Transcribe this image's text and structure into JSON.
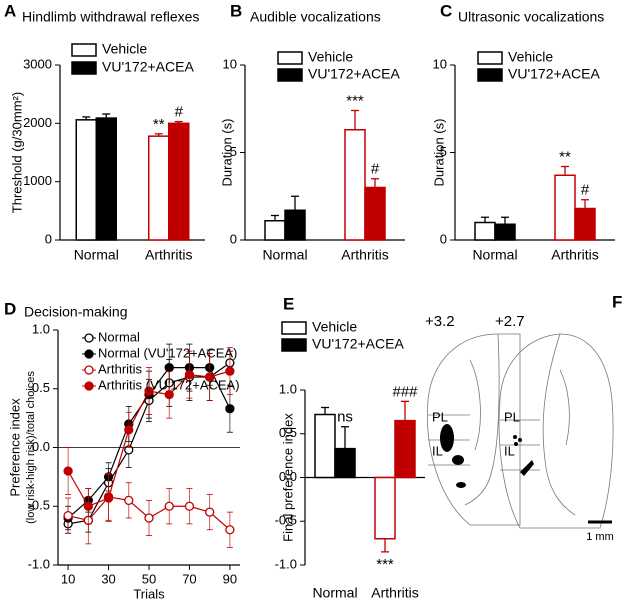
{
  "chart_data": [
    {
      "type": "bar",
      "panel": "A",
      "title": "Hindlimb withdrawal reflexes",
      "ylabel": [
        "Threshold (g/30mm²)"
      ],
      "categories": [
        "Normal",
        "Arthritis"
      ],
      "category_colors": [
        "#000000",
        "#c00000"
      ],
      "ylim": [
        0,
        3000
      ],
      "yticks": [
        0,
        1000,
        2000,
        3000
      ],
      "series": [
        {
          "name": "Vehicle",
          "filled": false,
          "values": [
            2060,
            1780
          ],
          "errors": [
            50,
            40
          ],
          "annotations": [
            null,
            "**"
          ]
        },
        {
          "name": "VU'172+ACEA",
          "filled": true,
          "values": [
            2090,
            2000
          ],
          "errors": [
            70,
            30
          ],
          "annotations": [
            null,
            "#"
          ]
        }
      ]
    },
    {
      "type": "bar",
      "panel": "B",
      "title": "Audible vocalizations",
      "ylabel": [
        "Duration (s)"
      ],
      "categories": [
        "Normal",
        "Arthritis"
      ],
      "category_colors": [
        "#000000",
        "#c00000"
      ],
      "ylim": [
        0,
        10
      ],
      "yticks": [
        0,
        5,
        10
      ],
      "series": [
        {
          "name": "Vehicle",
          "filled": false,
          "values": [
            1.1,
            6.3
          ],
          "errors": [
            0.3,
            1.1
          ],
          "annotations": [
            null,
            "***"
          ]
        },
        {
          "name": "VU'172+ACEA",
          "filled": true,
          "values": [
            1.7,
            3.0
          ],
          "errors": [
            0.8,
            0.5
          ],
          "annotations": [
            null,
            "#"
          ]
        }
      ]
    },
    {
      "type": "bar",
      "panel": "C",
      "title": "Ultrasonic  vocalizations",
      "ylabel": [
        "Duration (s)"
      ],
      "categories": [
        "Normal",
        "Arthritis"
      ],
      "category_colors": [
        "#000000",
        "#c00000"
      ],
      "ylim": [
        0,
        10
      ],
      "yticks": [
        0,
        5,
        10
      ],
      "series": [
        {
          "name": "Vehicle",
          "filled": false,
          "values": [
            1.0,
            3.7
          ],
          "errors": [
            0.3,
            0.5
          ],
          "annotations": [
            null,
            "**"
          ]
        },
        {
          "name": "VU'172+ACEA",
          "filled": true,
          "values": [
            0.9,
            1.8
          ],
          "errors": [
            0.4,
            0.5
          ],
          "annotations": [
            null,
            "#"
          ]
        }
      ]
    },
    {
      "type": "line",
      "panel": "D",
      "title": "Decision-making",
      "ylabel": [
        "Preference index",
        "(low risk-high risk)/total choices"
      ],
      "xlabel": "Trials",
      "x": [
        10,
        20,
        30,
        40,
        50,
        60,
        70,
        80,
        90
      ],
      "xlim": [
        5,
        95
      ],
      "xticks": [
        10,
        30,
        50,
        70,
        90
      ],
      "ylim": [
        -1,
        1
      ],
      "yticks": [
        {
          "value": -1,
          "label": "-1.0"
        },
        {
          "value": -0.5,
          "label": "-0.5"
        },
        {
          "value": 0,
          "label": "0.0"
        },
        {
          "value": 0.5,
          "label": "0.5"
        },
        {
          "value": 1,
          "label": "1.0"
        }
      ],
      "series": [
        {
          "name": "Normal",
          "color": "#000000",
          "filled": false,
          "values": [
            -0.65,
            -0.62,
            -0.3,
            -0.02,
            0.4,
            0.55,
            0.6,
            0.6,
            0.72
          ],
          "errors": [
            0.08,
            0.1,
            0.12,
            0.15,
            0.18,
            0.2,
            0.2,
            0.2,
            0.1
          ]
        },
        {
          "name": "Normal (VU'172+ACEA)",
          "color": "#000000",
          "filled": true,
          "values": [
            -0.6,
            -0.45,
            -0.25,
            0.2,
            0.45,
            0.68,
            0.68,
            0.68,
            0.33
          ],
          "errors": [
            0.1,
            0.1,
            0.12,
            0.15,
            0.2,
            0.2,
            0.2,
            0.15,
            0.2
          ]
        },
        {
          "name": "Arthritis",
          "color": "#c00000",
          "filled": false,
          "values": [
            -0.58,
            -0.62,
            -0.42,
            -0.45,
            -0.6,
            -0.5,
            -0.5,
            -0.55,
            -0.7
          ],
          "errors": [
            0.15,
            0.2,
            0.2,
            0.15,
            0.15,
            0.15,
            0.15,
            0.15,
            0.15
          ]
        },
        {
          "name": "Arthritis (VU'172+ACEA)",
          "color": "#c00000",
          "filled": true,
          "values": [
            -0.2,
            -0.5,
            -0.43,
            0.15,
            0.48,
            0.45,
            0.62,
            0.6,
            0.65
          ],
          "errors": [
            0.2,
            0.15,
            0.2,
            0.15,
            0.2,
            0.2,
            0.2,
            0.2,
            0.2
          ]
        }
      ]
    },
    {
      "type": "bar",
      "panel": "E",
      "ylabel": [
        "Final preference index"
      ],
      "categories": [
        "Normal",
        "Arthritis"
      ],
      "category_colors": [
        "#000000",
        "#c00000"
      ],
      "ylim": [
        -1,
        1
      ],
      "yticks": [
        {
          "value": -1,
          "label": "-1.0"
        },
        {
          "value": -0.5,
          "label": "-0.5"
        },
        {
          "value": 0,
          "label": "0.0"
        },
        {
          "value": 0.5,
          "label": "0.5"
        },
        {
          "value": 1,
          "label": "1.0"
        }
      ],
      "series": [
        {
          "name": "Vehicle",
          "filled": false,
          "values": [
            0.72,
            -0.7
          ],
          "errors": [
            0.08,
            0.15
          ],
          "annotations": [
            null,
            "***"
          ]
        },
        {
          "name": "VU'172+ACEA",
          "filled": true,
          "values": [
            0.33,
            0.65
          ],
          "errors": [
            0.25,
            0.22
          ],
          "annotations": [
            "ns",
            "###"
          ]
        }
      ]
    }
  ],
  "diagram": {
    "panel": "F",
    "sections": [
      {
        "level": "+3.2",
        "regions": [
          "PL",
          "IL"
        ]
      },
      {
        "level": "+2.7",
        "regions": [
          "PL",
          "IL"
        ]
      }
    ],
    "scale_bar": "1 mm"
  }
}
